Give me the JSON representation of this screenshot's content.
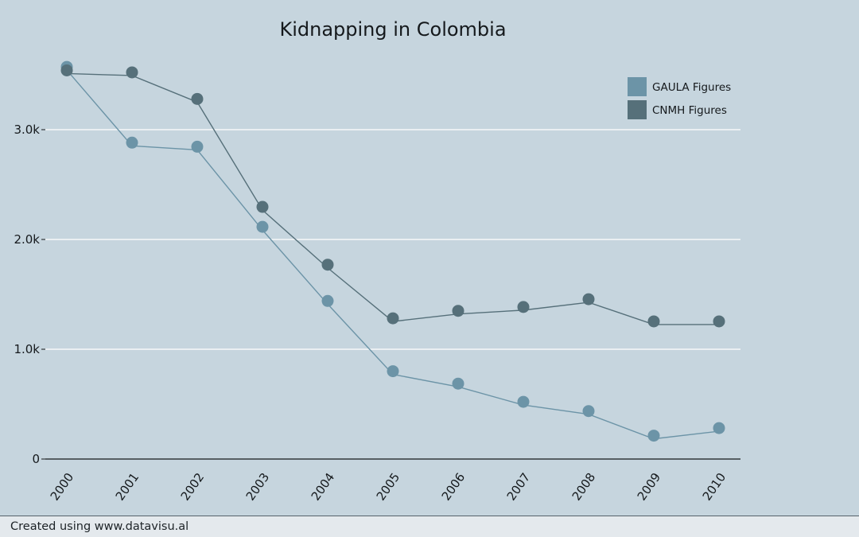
{
  "chart_data": {
    "type": "line",
    "title": "Kidnapping in Colombia",
    "xlabel": "",
    "ylabel": "",
    "categories": [
      "2000",
      "2001",
      "2002",
      "2003",
      "2004",
      "2005",
      "2006",
      "2007",
      "2008",
      "2009",
      "2010"
    ],
    "ylim": [
      0,
      3750
    ],
    "yticks": [
      {
        "value": 0,
        "label": "0"
      },
      {
        "value": 1000,
        "label": "1.0k"
      },
      {
        "value": 2000,
        "label": "2.0k"
      },
      {
        "value": 3000,
        "label": "3.0k"
      }
    ],
    "grid": true,
    "legend_position": "top-right",
    "series": [
      {
        "name": "GAULA Figures",
        "color": "#6c94a7",
        "values": [
          3572,
          2882,
          2845,
          2115,
          1440,
          800,
          687,
          521,
          437,
          213,
          282
        ]
      },
      {
        "name": "CNMH Figures",
        "color": "#56707a",
        "values": [
          3540,
          3522,
          3280,
          2297,
          1770,
          1282,
          1350,
          1385,
          1456,
          1254,
          1254
        ]
      }
    ]
  },
  "footer": {
    "credit": "Created using www.datavisu.al"
  }
}
